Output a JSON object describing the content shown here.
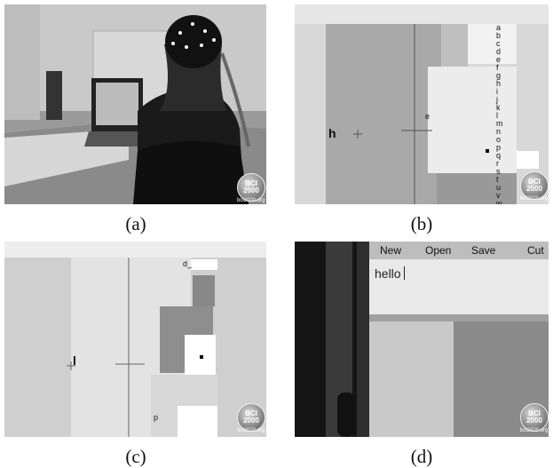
{
  "figure": {
    "panels": [
      {
        "caption": "(a)"
      },
      {
        "caption": "(b)"
      },
      {
        "caption": "(c)"
      },
      {
        "caption": "(d)"
      }
    ]
  },
  "watermark": {
    "logo_text": "BCI\n2000",
    "url": "bci2000.org"
  },
  "panel_b": {
    "target_letter": "h",
    "cursor_letter": "e",
    "letter_column": [
      "a",
      "b",
      "c",
      "d",
      "e",
      "f",
      "g",
      "h",
      "i",
      "j",
      "k",
      "l",
      "m",
      "n",
      "o",
      "p",
      "q",
      "r",
      "s",
      "t",
      "u",
      "v",
      "w",
      "x",
      "y",
      "z"
    ]
  },
  "panel_c": {
    "target_letter": "l",
    "word_box": "d_",
    "letter_p": "p"
  },
  "panel_d": {
    "toolbar": {
      "new_label": "New",
      "open_label": "Open",
      "save_label": "Save",
      "cut_label": "Cut"
    },
    "editor_text": "hello"
  }
}
